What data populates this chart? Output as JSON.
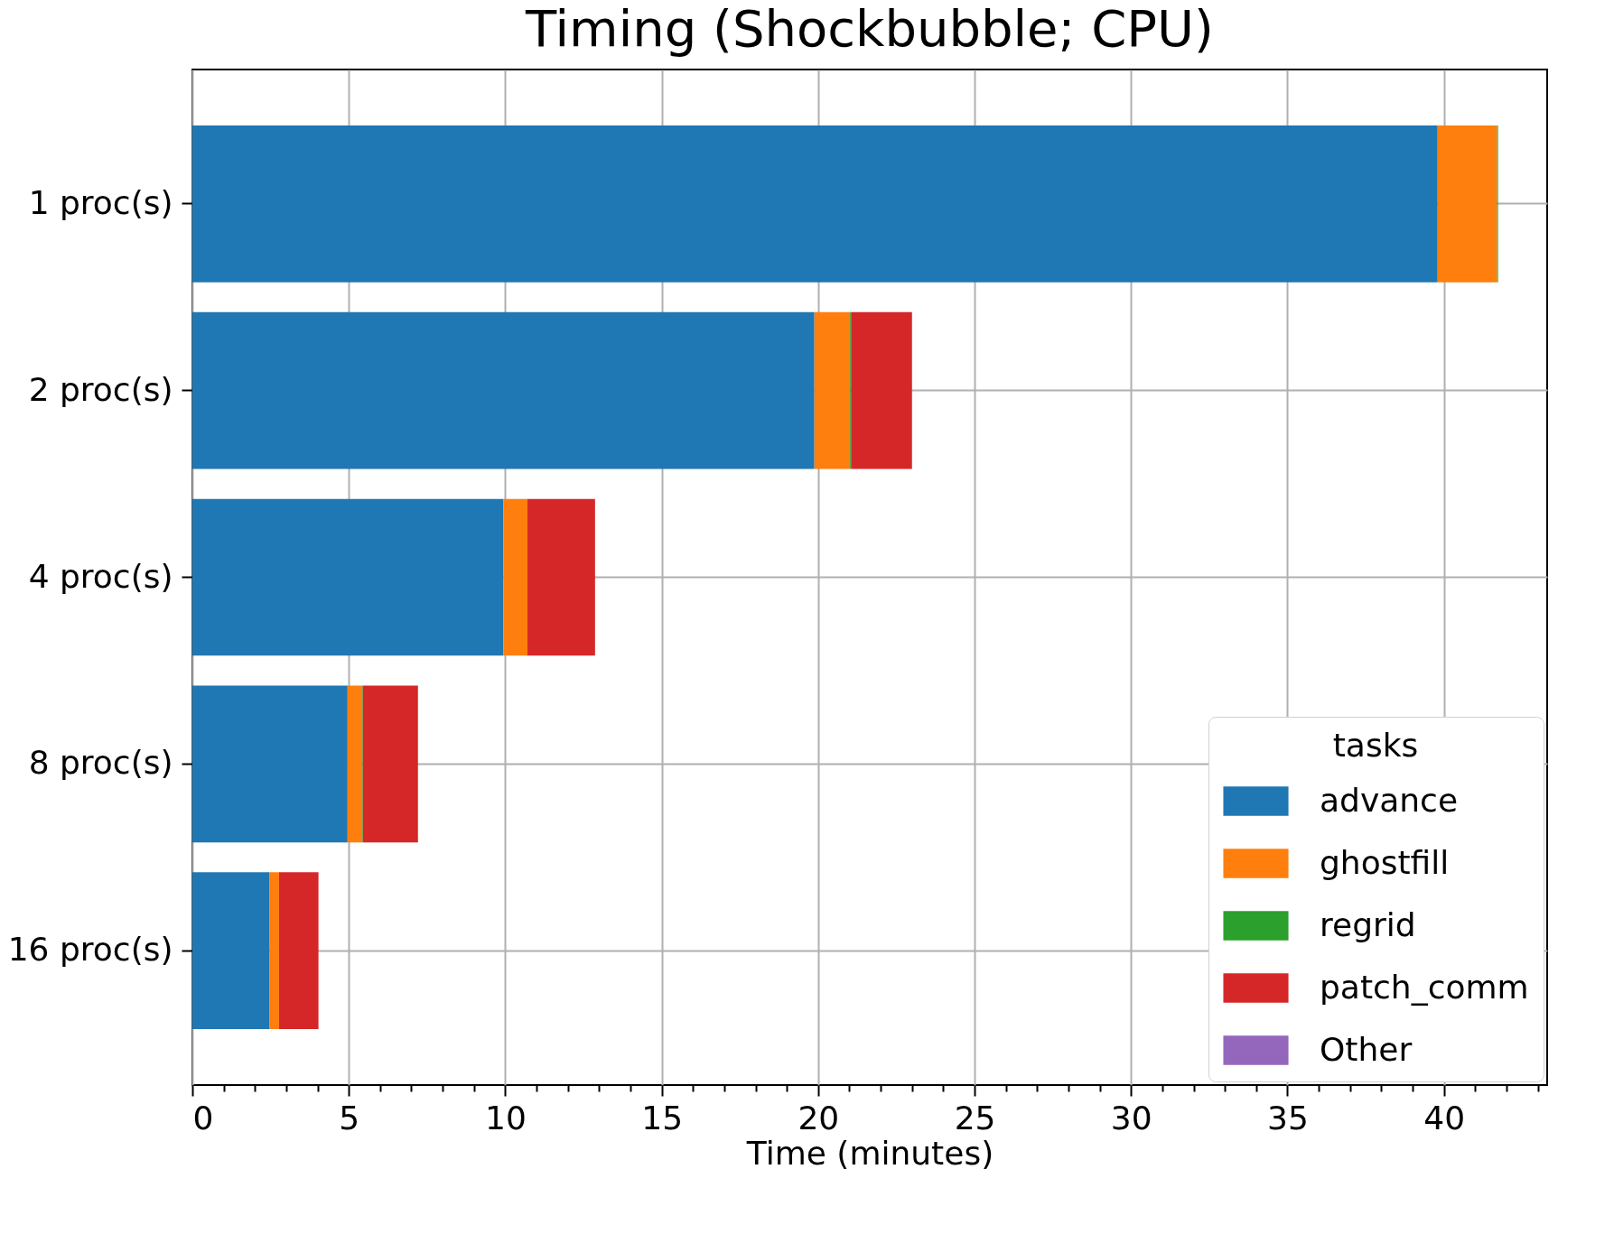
{
  "chart_data": {
    "type": "bar",
    "orientation": "horizontal",
    "stacked": true,
    "title": "Timing (Shockbubble; CPU)",
    "xlabel": "Time (minutes)",
    "legend_title": "tasks",
    "legend": "bottom right",
    "grid": true,
    "categories": [
      "1 proc(s)",
      "2 proc(s)",
      "4 proc(s)",
      "8 proc(s)",
      "16 proc(s)"
    ],
    "xlim": [
      0,
      43.3
    ],
    "xticks": [
      0,
      {
        "value": 1,
        "label": null
      },
      {
        "value": 2,
        "label": null
      },
      {
        "value": 3,
        "label": null
      },
      {
        "value": 4,
        "label": null
      },
      5,
      {
        "value": 6,
        "label": null
      },
      {
        "value": 7,
        "label": null
      },
      {
        "value": 8,
        "label": null
      },
      {
        "value": 9,
        "label": null
      },
      10,
      {
        "value": 11,
        "label": null
      },
      {
        "value": 12,
        "label": null
      },
      {
        "value": 13,
        "label": null
      },
      {
        "value": 14,
        "label": null
      },
      15,
      {
        "value": 16,
        "label": null
      },
      {
        "value": 17,
        "label": null
      },
      {
        "value": 18,
        "label": null
      },
      {
        "value": 19,
        "label": null
      },
      20,
      {
        "value": 21,
        "label": null
      },
      {
        "value": 22,
        "label": null
      },
      {
        "value": 23,
        "label": null
      },
      {
        "value": 24,
        "label": null
      },
      25,
      {
        "value": 26,
        "label": null
      },
      {
        "value": 27,
        "label": null
      },
      {
        "value": 28,
        "label": null
      },
      {
        "value": 29,
        "label": null
      },
      30,
      {
        "value": 31,
        "label": null
      },
      {
        "value": 32,
        "label": null
      },
      {
        "value": 33,
        "label": null
      },
      {
        "value": 34,
        "label": null
      },
      35,
      {
        "value": 36,
        "label": null
      },
      {
        "value": 37,
        "label": null
      },
      {
        "value": 38,
        "label": null
      },
      {
        "value": 39,
        "label": null
      },
      40,
      {
        "value": 41,
        "label": null
      },
      {
        "value": 42,
        "label": null
      },
      {
        "value": 43,
        "label": null
      }
    ],
    "series": [
      {
        "name": "advance",
        "color": "#1f77b4",
        "values": [
          39.8,
          19.88,
          9.94,
          4.96,
          2.47
        ]
      },
      {
        "name": "ghostfill",
        "color": "#ff7f0e",
        "values": [
          1.9,
          1.14,
          0.77,
          0.47,
          0.3
        ]
      },
      {
        "name": "regrid",
        "color": "#2ca02c",
        "values": [
          0.03,
          0.03,
          0,
          0.02,
          0
        ]
      },
      {
        "name": "patch_comm",
        "color": "#d62728",
        "values": [
          0,
          1.95,
          2.16,
          1.76,
          1.26
        ]
      },
      {
        "name": "Other",
        "color": "#9467bd",
        "values": [
          0,
          0,
          0,
          null,
          0
        ]
      }
    ]
  }
}
